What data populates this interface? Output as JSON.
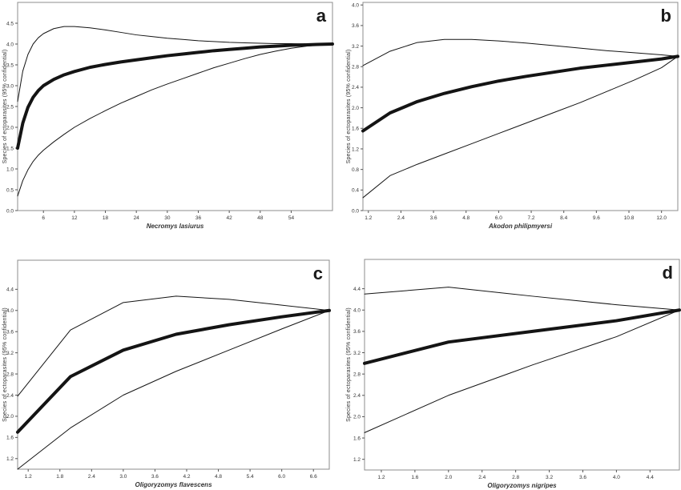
{
  "figure": {
    "background": "#ffffff",
    "curve_color": "#141414",
    "frame_color": "#8c8c8c",
    "tick_color": "#555555",
    "label_color": "#333333",
    "panel_letters": [
      "a",
      "b",
      "c",
      "d"
    ]
  },
  "chart_data": [
    {
      "type": "line",
      "panel_letter": "a",
      "xlabel": "Necromys lasiurus",
      "ylabel": "Species of ectoparasites (95% confidential)",
      "xlim": [
        1,
        62
      ],
      "ylim": [
        0,
        5.0
      ],
      "grid": false,
      "legend": "none",
      "xtick_values": [
        6,
        12,
        18,
        24,
        30,
        36,
        42,
        48,
        54
      ],
      "xtick_labels": [
        "6",
        "12",
        "18",
        "24",
        "30",
        "36",
        "42",
        "48",
        "54"
      ],
      "ytick_values": [
        0.0,
        0.5,
        1.0,
        1.5,
        2.0,
        2.5,
        3.0,
        3.5,
        4.0,
        4.5
      ],
      "ytick_labels": [
        "0.0",
        "0.5",
        "1.0",
        "1.5",
        "2.0",
        "2.5",
        "3.0",
        "3.5",
        "4.0",
        "4.5"
      ],
      "series": [
        {
          "name": "upper-95ci",
          "x": [
            1,
            2,
            3,
            4,
            5,
            6,
            8,
            10,
            12,
            15,
            18,
            21,
            24,
            27,
            30,
            33,
            36,
            39,
            42,
            45,
            48,
            51,
            54,
            57,
            59,
            62
          ],
          "y": [
            2.62,
            3.35,
            3.75,
            4.0,
            4.15,
            4.25,
            4.37,
            4.42,
            4.42,
            4.39,
            4.34,
            4.28,
            4.22,
            4.18,
            4.14,
            4.11,
            4.08,
            4.06,
            4.04,
            4.03,
            4.02,
            4.01,
            4.01,
            4.0,
            4.0,
            4.0
          ]
        },
        {
          "name": "mean-accumulation",
          "x": [
            1,
            2,
            3,
            4,
            5,
            6,
            8,
            10,
            12,
            15,
            18,
            21,
            24,
            27,
            30,
            33,
            36,
            39,
            42,
            45,
            48,
            51,
            54,
            57,
            59,
            62
          ],
          "y": [
            1.5,
            2.1,
            2.48,
            2.72,
            2.88,
            3.0,
            3.15,
            3.26,
            3.34,
            3.44,
            3.51,
            3.57,
            3.62,
            3.67,
            3.72,
            3.76,
            3.8,
            3.84,
            3.87,
            3.9,
            3.93,
            3.95,
            3.97,
            3.98,
            3.99,
            4.0
          ]
        },
        {
          "name": "lower-95ci",
          "x": [
            1,
            2,
            3,
            4,
            5,
            6,
            8,
            10,
            12,
            15,
            18,
            21,
            24,
            27,
            30,
            33,
            36,
            39,
            42,
            45,
            48,
            51,
            54,
            57,
            59,
            62
          ],
          "y": [
            0.35,
            0.72,
            0.98,
            1.18,
            1.33,
            1.45,
            1.65,
            1.83,
            2.0,
            2.21,
            2.4,
            2.58,
            2.74,
            2.9,
            3.04,
            3.17,
            3.3,
            3.43,
            3.54,
            3.65,
            3.75,
            3.83,
            3.9,
            3.95,
            3.97,
            4.0
          ]
        }
      ]
    },
    {
      "type": "line",
      "panel_letter": "b",
      "xlabel": "Akodon philipmyersi",
      "ylabel": "Species of ectoparasites (95% confidential)",
      "xlim": [
        1,
        12.6
      ],
      "ylim": [
        0,
        4.05
      ],
      "grid": false,
      "legend": "none",
      "xtick_values": [
        1.2,
        2.4,
        3.6,
        4.8,
        6.0,
        7.2,
        8.4,
        9.6,
        10.8,
        12.0
      ],
      "xtick_labels": [
        "1.2",
        "2.4",
        "3.6",
        "4.8",
        "6.0",
        "7.2",
        "8.4",
        "9.6",
        "10.8",
        "12.0"
      ],
      "ytick_values": [
        0.0,
        0.4,
        0.8,
        1.2,
        1.6,
        2.0,
        2.4,
        2.8,
        3.2,
        3.6,
        4.0
      ],
      "ytick_labels": [
        "0.0",
        "0.4",
        "0.8",
        "1.2",
        "1.6",
        "2.0",
        "2.4",
        "2.8",
        "3.2",
        "3.6",
        "4.0"
      ],
      "series": [
        {
          "name": "upper-95ci",
          "x": [
            1,
            2,
            3,
            4,
            5,
            6,
            7,
            8,
            9,
            10,
            11,
            12,
            12.6
          ],
          "y": [
            2.82,
            3.1,
            3.27,
            3.33,
            3.33,
            3.3,
            3.26,
            3.21,
            3.16,
            3.11,
            3.07,
            3.03,
            3.0
          ]
        },
        {
          "name": "mean-accumulation",
          "x": [
            1,
            2,
            3,
            4,
            5,
            6,
            7,
            8,
            9,
            10,
            11,
            12,
            12.6
          ],
          "y": [
            1.55,
            1.9,
            2.12,
            2.28,
            2.41,
            2.52,
            2.61,
            2.69,
            2.77,
            2.83,
            2.89,
            2.95,
            3.0
          ]
        },
        {
          "name": "lower-95ci",
          "x": [
            1,
            2,
            3,
            4,
            5,
            6,
            7,
            8,
            9,
            10,
            11,
            12,
            12.6
          ],
          "y": [
            0.25,
            0.68,
            0.9,
            1.1,
            1.3,
            1.5,
            1.7,
            1.9,
            2.1,
            2.32,
            2.54,
            2.78,
            3.0
          ]
        }
      ]
    },
    {
      "type": "line",
      "panel_letter": "c",
      "xlabel": "Oligoryzomys flavescens",
      "ylabel": "Species of ectoparasites (95% confidential)",
      "xlim": [
        1,
        6.9
      ],
      "ylim": [
        1.0,
        4.95
      ],
      "grid": false,
      "legend": "none",
      "xtick_values": [
        1.2,
        1.8,
        2.4,
        3.0,
        3.6,
        4.2,
        4.8,
        5.4,
        6.0,
        6.6
      ],
      "xtick_labels": [
        "1.2",
        "1.8",
        "2.4",
        "3.0",
        "3.6",
        "4.2",
        "4.8",
        "5.4",
        "6.0",
        "6.6"
      ],
      "ytick_values": [
        1.2,
        1.6,
        2.0,
        2.4,
        2.8,
        3.2,
        3.6,
        4.0,
        4.4
      ],
      "ytick_labels": [
        "1.2",
        "1.6",
        "2.0",
        "2.4",
        "2.8",
        "3.2",
        "3.6",
        "4.0",
        "4.4"
      ],
      "series": [
        {
          "name": "upper-95ci",
          "x": [
            1,
            2,
            3,
            4,
            5,
            6,
            6.9
          ],
          "y": [
            2.38,
            3.63,
            4.15,
            4.27,
            4.21,
            4.1,
            4.0
          ]
        },
        {
          "name": "mean-accumulation",
          "x": [
            1,
            2,
            3,
            4,
            5,
            6,
            6.9
          ],
          "y": [
            1.7,
            2.75,
            3.25,
            3.55,
            3.73,
            3.88,
            4.0
          ]
        },
        {
          "name": "lower-95ci",
          "x": [
            1,
            2,
            3,
            4,
            5,
            6,
            6.9
          ],
          "y": [
            1.0,
            1.78,
            2.4,
            2.85,
            3.25,
            3.65,
            4.0
          ]
        }
      ]
    },
    {
      "type": "line",
      "panel_letter": "d",
      "xlabel": "Oligoryzomys nigripes",
      "ylabel": "Species of ectoparasites (95% confidential)",
      "xlim": [
        1,
        4.75
      ],
      "ylim": [
        1.0,
        4.95
      ],
      "grid": false,
      "legend": "none",
      "xtick_values": [
        1.2,
        1.6,
        2.0,
        2.4,
        2.8,
        3.2,
        3.6,
        4.0,
        4.4
      ],
      "xtick_labels": [
        "1.2",
        "1.6",
        "2.0",
        "2.4",
        "2.8",
        "3.2",
        "3.6",
        "4.0",
        "4.4"
      ],
      "ytick_values": [
        1.2,
        1.6,
        2.0,
        2.4,
        2.8,
        3.2,
        3.6,
        4.0,
        4.4
      ],
      "ytick_labels": [
        "1.2",
        "1.6",
        "2.0",
        "2.4",
        "2.8",
        "3.2",
        "3.6",
        "4.0",
        "4.4"
      ],
      "series": [
        {
          "name": "upper-95ci",
          "x": [
            1,
            2,
            3,
            4,
            4.75
          ],
          "y": [
            4.3,
            4.43,
            4.26,
            4.1,
            4.0
          ]
        },
        {
          "name": "mean-accumulation",
          "x": [
            1,
            2,
            3,
            4,
            4.75
          ],
          "y": [
            3.0,
            3.4,
            3.6,
            3.8,
            4.0
          ]
        },
        {
          "name": "lower-95ci",
          "x": [
            1,
            2,
            3,
            4,
            4.75
          ],
          "y": [
            1.7,
            2.4,
            2.97,
            3.5,
            4.0
          ]
        }
      ]
    }
  ]
}
